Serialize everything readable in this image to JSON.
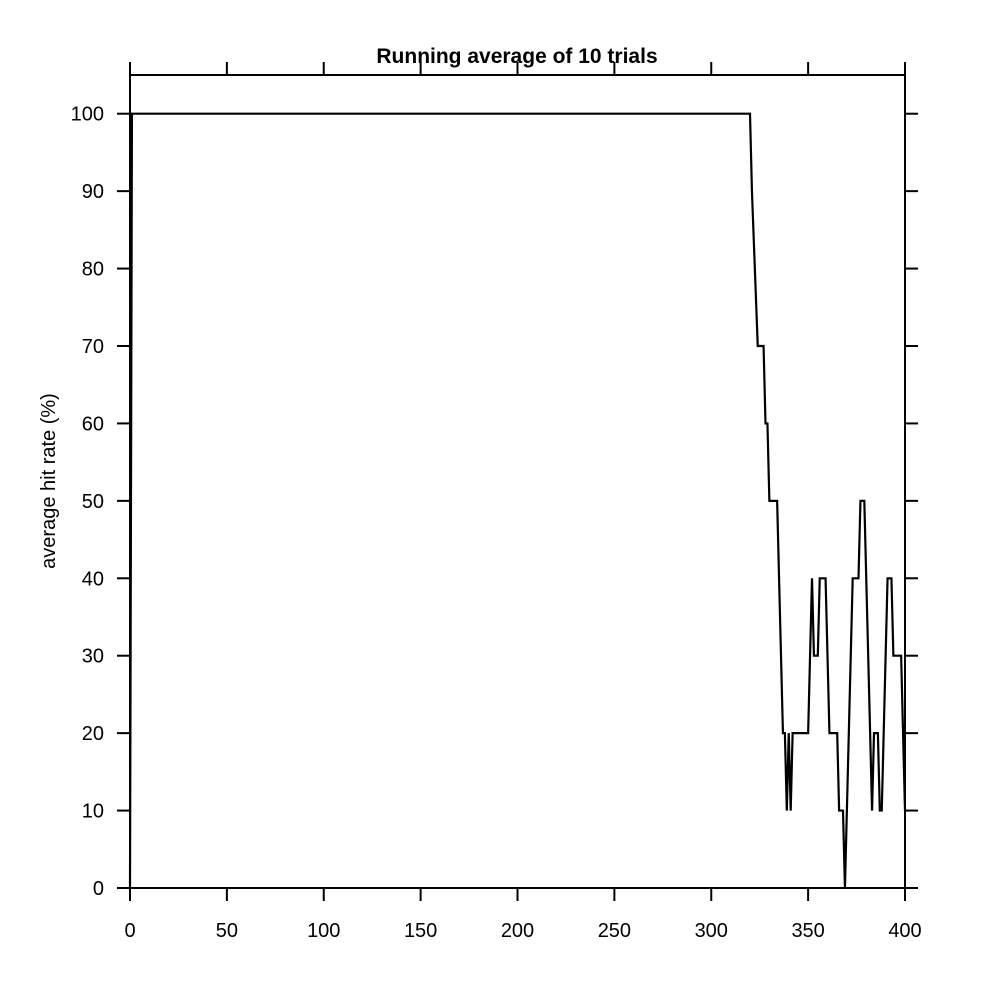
{
  "chart_data": {
    "type": "line",
    "title": "Running average of 10 trials",
    "xlabel": "",
    "ylabel": "average hit rate (%)",
    "xlim": [
      0,
      400
    ],
    "ylim": [
      0,
      105
    ],
    "x_ticks": [
      0,
      50,
      100,
      150,
      200,
      250,
      300,
      350,
      400
    ],
    "y_ticks": [
      0,
      10,
      20,
      30,
      40,
      50,
      60,
      70,
      80,
      90,
      100
    ],
    "grid": false,
    "legend": "none",
    "line_color": "#000000",
    "series": [
      {
        "x": [
          0,
          1,
          2,
          3,
          320,
          321,
          324,
          325,
          326,
          327,
          328,
          329,
          330,
          331,
          332,
          333,
          334,
          335,
          336,
          337,
          338,
          339,
          340,
          341,
          342,
          343,
          344,
          345,
          346,
          347,
          348,
          349,
          350,
          351,
          352,
          353,
          354,
          355,
          356,
          357,
          358,
          359,
          360,
          361,
          362,
          363,
          364,
          365,
          366,
          367,
          368,
          369,
          370,
          371,
          372,
          373,
          374,
          375,
          376,
          377,
          378,
          379,
          380,
          381,
          382,
          383,
          384,
          385,
          386,
          387,
          388,
          389,
          390,
          391,
          392,
          393,
          394,
          395,
          396,
          397,
          398,
          399,
          400
        ],
        "values": [
          0,
          100,
          100,
          100,
          100,
          90,
          70,
          70,
          70,
          70,
          60,
          60,
          50,
          50,
          50,
          50,
          50,
          40,
          30,
          20,
          20,
          10,
          20,
          10,
          20,
          20,
          20,
          20,
          20,
          20,
          20,
          20,
          20,
          30,
          40,
          30,
          30,
          30,
          40,
          40,
          40,
          40,
          30,
          20,
          20,
          20,
          20,
          20,
          10,
          10,
          10,
          0,
          10,
          20,
          30,
          40,
          40,
          40,
          40,
          50,
          50,
          50,
          40,
          30,
          20,
          10,
          20,
          20,
          20,
          10,
          10,
          20,
          30,
          40,
          40,
          40,
          30,
          30,
          30,
          30,
          30,
          20,
          10
        ]
      }
    ]
  }
}
